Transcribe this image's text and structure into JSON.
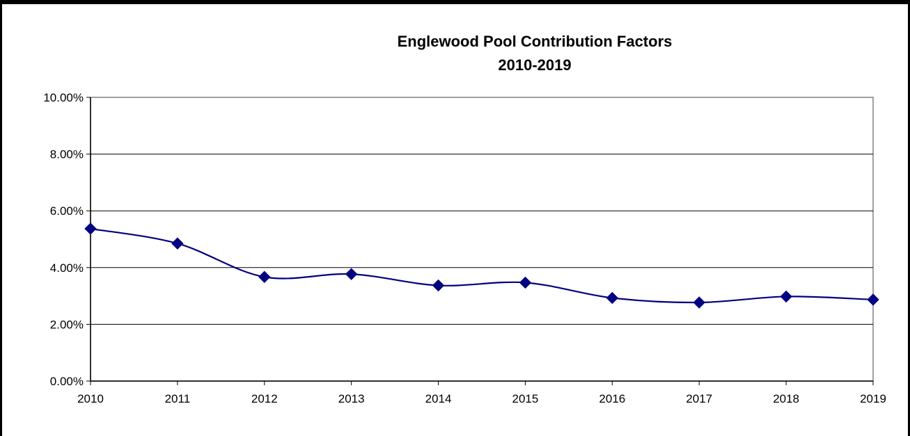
{
  "chart_data": {
    "type": "line",
    "title": "Englewood Pool Contribution Factors",
    "subtitle": "2010-2019",
    "xlabel": "",
    "ylabel": "",
    "categories": [
      "2010",
      "2011",
      "2012",
      "2013",
      "2014",
      "2015",
      "2016",
      "2017",
      "2018",
      "2019"
    ],
    "series": [
      {
        "values": [
          5.37,
          4.85,
          3.67,
          3.77,
          3.37,
          3.47,
          2.93,
          2.77,
          2.98,
          2.87
        ],
        "color": "#000080",
        "marker": "diamond",
        "smooth": true
      }
    ],
    "ylim": [
      0,
      10
    ],
    "yticks": [
      0,
      2,
      4,
      6,
      8,
      10
    ],
    "ytick_labels": [
      "0.00%",
      "2.00%",
      "4.00%",
      "6.00%",
      "8.00%",
      "10.00%"
    ],
    "grid": "horizontal",
    "legend": "none"
  }
}
